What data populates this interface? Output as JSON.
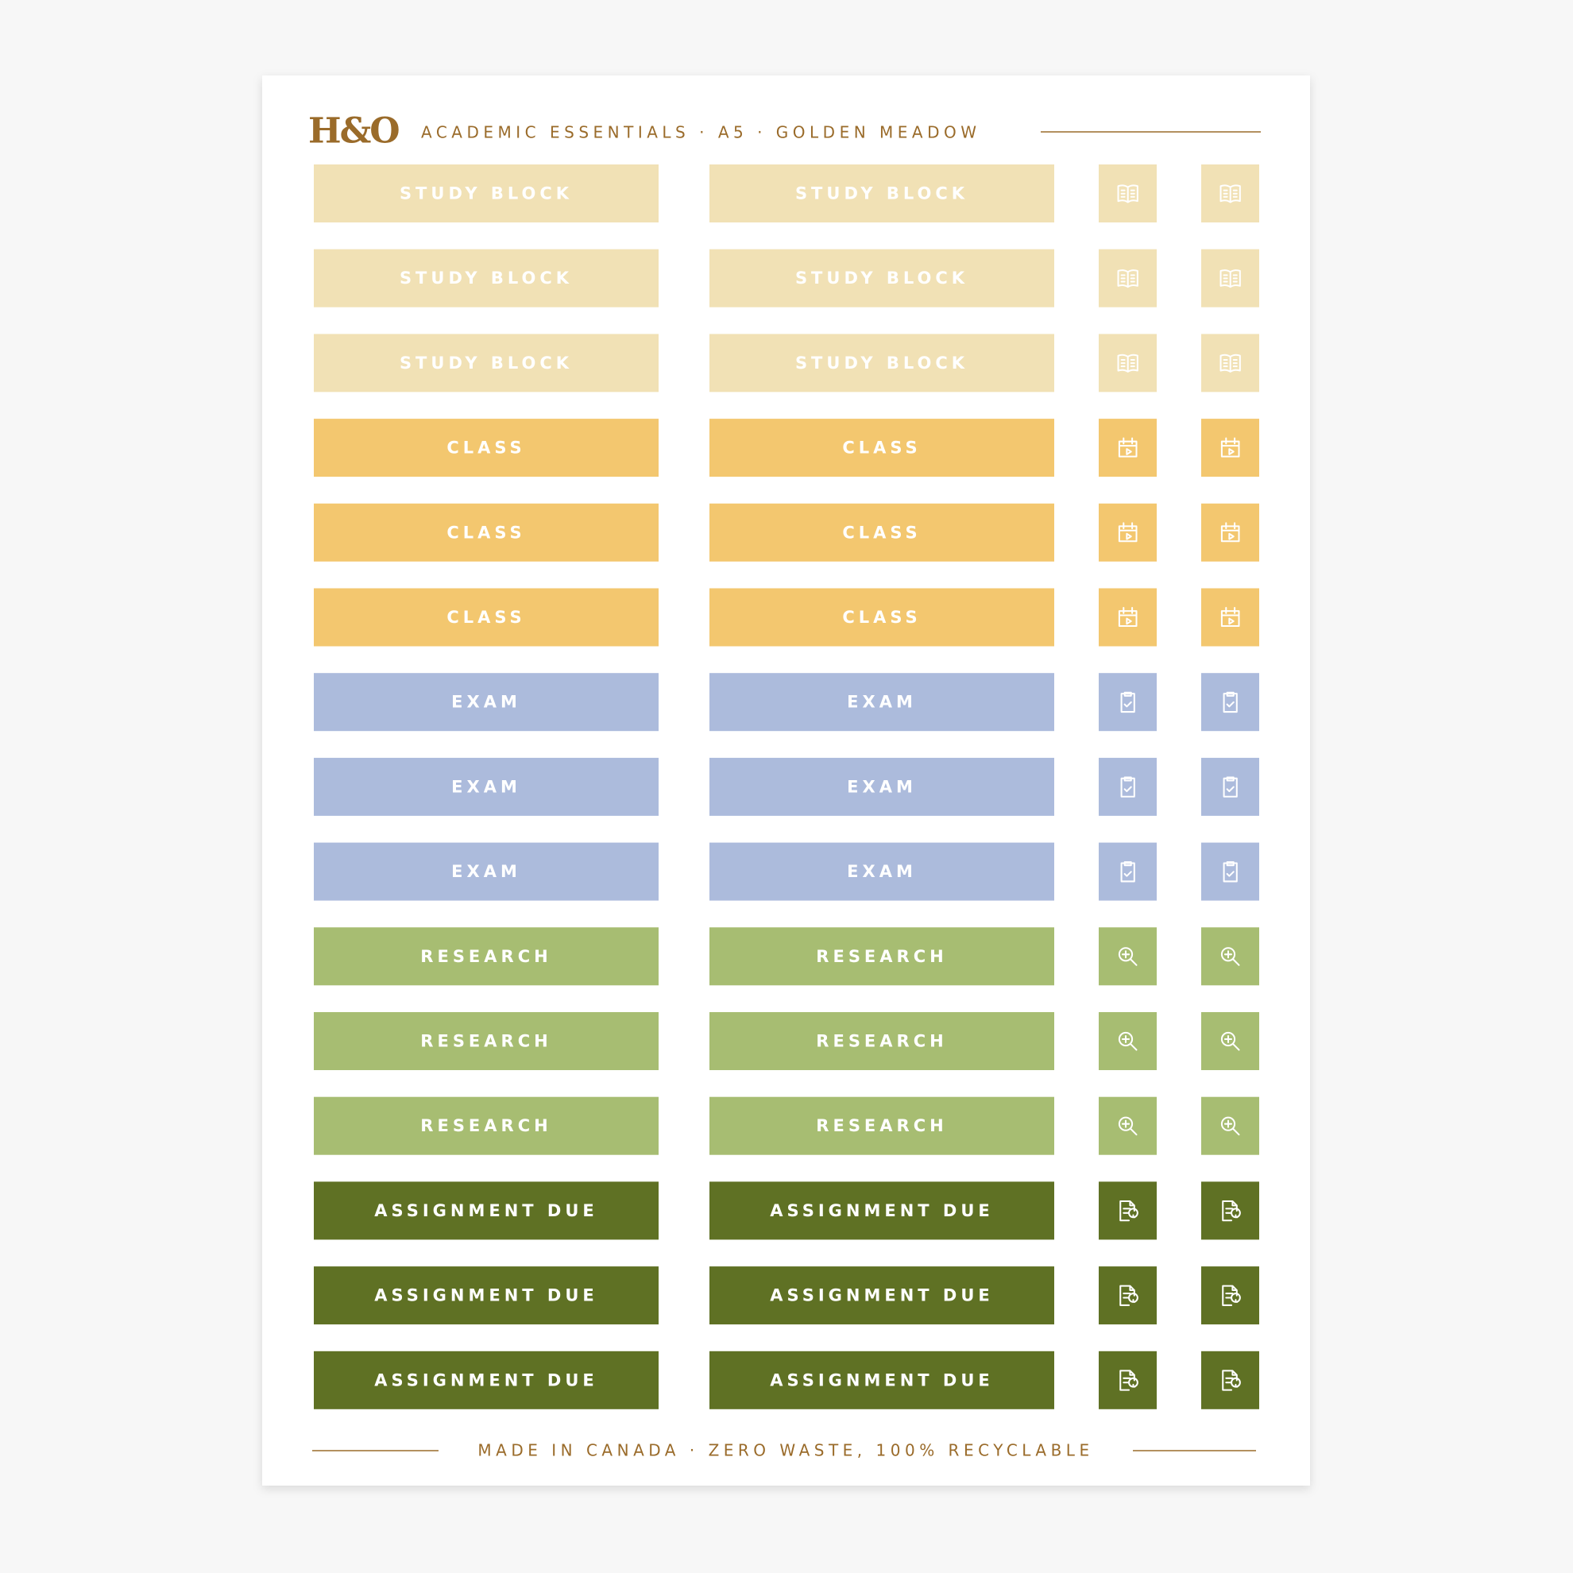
{
  "header": {
    "brand": "H&O",
    "title": "ACADEMIC ESSENTIALS · A5 · GOLDEN MEADOW"
  },
  "groups": [
    {
      "color": "#f1e1b5",
      "labels": [
        "STUDY BLOCK",
        "STUDY BLOCK",
        "STUDY BLOCK"
      ]
    },
    {
      "color": "#f3c76f",
      "labels": [
        "CLASS",
        "CLASS",
        "CLASS"
      ]
    },
    {
      "color": "#acbbdc",
      "labels": [
        "EXAM",
        "EXAM",
        "EXAM"
      ]
    },
    {
      "color": "#a7bd72",
      "labels": [
        "RESEARCH",
        "RESEARCH",
        "RESEARCH"
      ]
    },
    {
      "color": "#5f7124",
      "labels": [
        "ASSIGNMENT DUE",
        "ASSIGNMENT DUE",
        "ASSIGNMENT DUE"
      ]
    }
  ],
  "footer": {
    "text": "MADE IN CANADA · ZERO WASTE, 100% RECYCLABLE"
  }
}
